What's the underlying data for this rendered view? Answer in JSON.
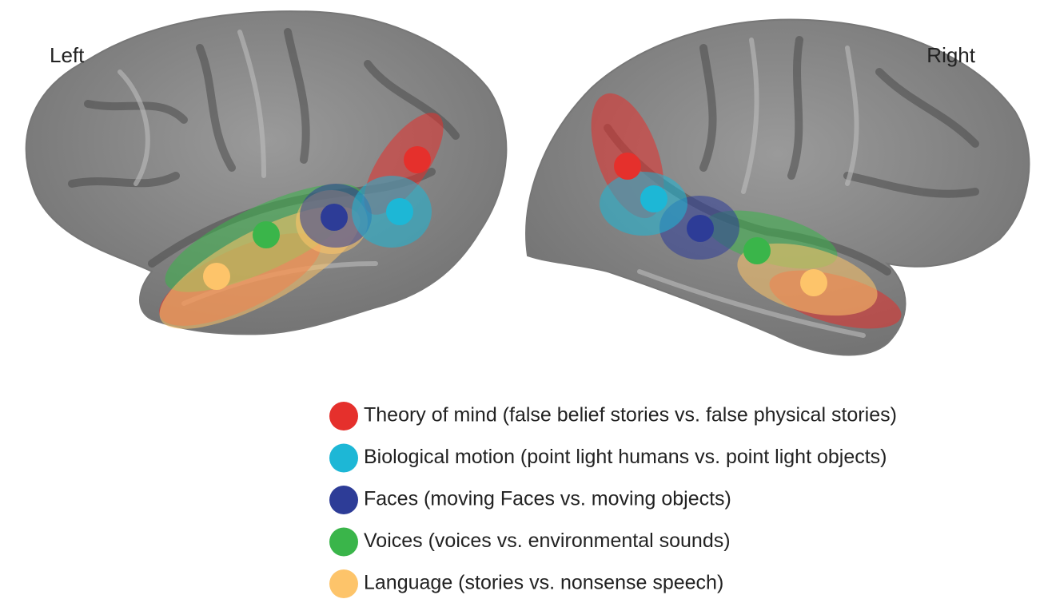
{
  "hemispheres": {
    "left": "Left",
    "right": "Right"
  },
  "legend": [
    {
      "label": "Theory of mind (false belief stories vs. false physical stories)",
      "color": "#e5302c"
    },
    {
      "label": "Biological motion (point light humans vs. point light objects)",
      "color": "#1db7d6"
    },
    {
      "label": "Faces (moving Faces vs. moving objects)",
      "color": "#2d3c97"
    },
    {
      "label": "Voices (voices vs. environmental sounds)",
      "color": "#3ab54a"
    },
    {
      "label": "Language (stories vs. nonsense speech)",
      "color": "#fdc46a"
    }
  ]
}
